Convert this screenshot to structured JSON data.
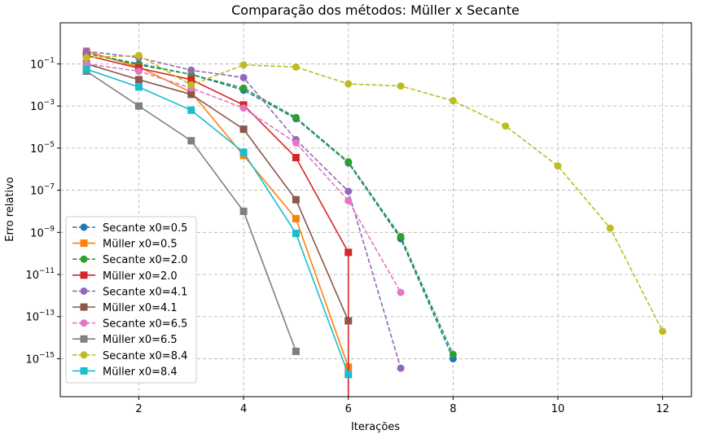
{
  "chart_data": {
    "type": "line",
    "title": "Comparação dos métodos: Müller x Secante",
    "xlabel": "Iterações",
    "ylabel": "Erro relativo",
    "xlim": [
      0.5,
      12.55
    ],
    "ylim_log10": [
      -16.8,
      0.95
    ],
    "x_ticks": [
      2,
      4,
      6,
      8,
      10,
      12
    ],
    "y_ticks": [
      {
        "base": "10",
        "exp": "−1",
        "value": -1
      },
      {
        "base": "10",
        "exp": "−3",
        "value": -3
      },
      {
        "base": "10",
        "exp": "−5",
        "value": -5
      },
      {
        "base": "10",
        "exp": "−7",
        "value": -7
      },
      {
        "base": "10",
        "exp": "−9",
        "value": -9
      },
      {
        "base": "10",
        "exp": "−11",
        "value": -11
      },
      {
        "base": "10",
        "exp": "−13",
        "value": -13
      },
      {
        "base": "10",
        "exp": "−15",
        "value": -15
      }
    ],
    "grid": true,
    "legend_position": "lower-left",
    "series": [
      {
        "name": "Secante x0=0.5",
        "color": "#1f77b4",
        "style": "dashed",
        "marker": "circle",
        "x": [
          1,
          2,
          3,
          4,
          5,
          6,
          7,
          8
        ],
        "log10": [
          -0.5,
          -1.0,
          -1.5,
          -2.25,
          -3.6,
          -5.7,
          -9.3,
          -15.0
        ]
      },
      {
        "name": "Müller x0=0.5",
        "color": "#ff7f0e",
        "style": "solid",
        "marker": "square",
        "x": [
          1,
          2,
          3,
          4,
          5,
          6,
          6
        ],
        "log10": [
          -0.4,
          -1.15,
          -2.35,
          -5.35,
          -8.35,
          -15.4,
          -17.5
        ]
      },
      {
        "name": "Secante x0=2.0",
        "color": "#2ca02c",
        "style": "dashed",
        "marker": "circle",
        "x": [
          1,
          2,
          3,
          4,
          5,
          6,
          7,
          8
        ],
        "log10": [
          -0.5,
          -1.05,
          -1.5,
          -2.15,
          -3.55,
          -5.65,
          -9.2,
          -14.8
        ]
      },
      {
        "name": "Müller x0=2.0",
        "color": "#d62728",
        "style": "solid",
        "marker": "square",
        "x": [
          1,
          2,
          3,
          4,
          5,
          6,
          6
        ],
        "log10": [
          -0.6,
          -1.2,
          -1.75,
          -2.95,
          -5.45,
          -9.95,
          -17.5
        ]
      },
      {
        "name": "Secante x0=4.1",
        "color": "#9467bd",
        "style": "dashed",
        "marker": "circle",
        "x": [
          1,
          2,
          3,
          4,
          5,
          6,
          7
        ],
        "log10": [
          -0.4,
          -0.7,
          -1.3,
          -1.65,
          -4.6,
          -7.05,
          -15.45
        ]
      },
      {
        "name": "Müller x0=4.1",
        "color": "#8c564b",
        "style": "solid",
        "marker": "square",
        "x": [
          1,
          2,
          3,
          4,
          5,
          6
        ],
        "log10": [
          -1.0,
          -1.75,
          -2.45,
          -4.1,
          -7.45,
          -13.2
        ]
      },
      {
        "name": "Secante x0=6.5",
        "color": "#e377c2",
        "style": "dashed",
        "marker": "circle",
        "x": [
          1,
          2,
          3,
          4,
          5,
          6,
          7
        ],
        "log10": [
          -1.0,
          -1.35,
          -2.15,
          -3.1,
          -4.75,
          -7.5,
          -11.85
        ]
      },
      {
        "name": "Müller x0=6.5",
        "color": "#7f7f7f",
        "style": "solid",
        "marker": "square",
        "x": [
          1,
          2,
          3,
          4,
          5
        ],
        "log10": [
          -1.35,
          -3.0,
          -4.65,
          -8.0,
          -14.65
        ]
      },
      {
        "name": "Secante x0=8.4",
        "color": "#bcbd22",
        "style": "dashed",
        "marker": "circle",
        "x": [
          1,
          2,
          3,
          4,
          5,
          6,
          7,
          8,
          9,
          10,
          11,
          12
        ],
        "log10": [
          -0.7,
          -0.6,
          -2.0,
          -1.05,
          -1.15,
          -1.95,
          -2.05,
          -2.75,
          -3.95,
          -5.85,
          -8.8,
          -13.7
        ]
      },
      {
        "name": "Müller x0=8.4",
        "color": "#17becf",
        "style": "solid",
        "marker": "square",
        "x": [
          1,
          2,
          3,
          4,
          5,
          6
        ],
        "log10": [
          -1.25,
          -2.1,
          -3.2,
          -5.2,
          -9.05,
          -15.75
        ]
      }
    ]
  }
}
